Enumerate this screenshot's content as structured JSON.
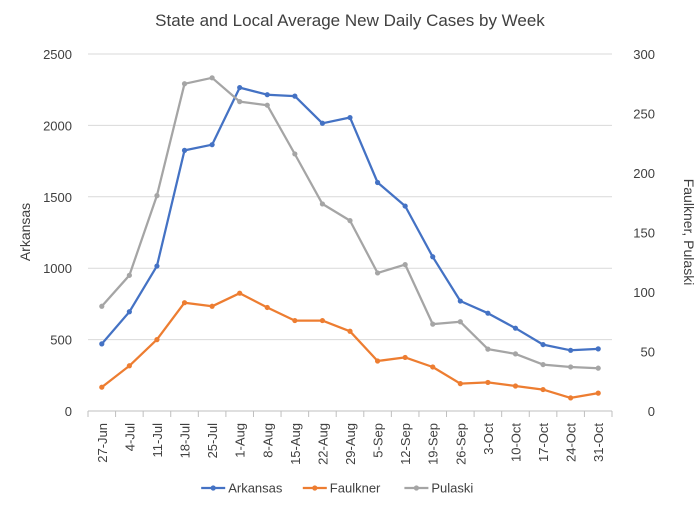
{
  "chart_data": {
    "type": "line",
    "title": "State and Local Average New Daily Cases by Week",
    "categories": [
      "27-Jun",
      "4-Jul",
      "11-Jul",
      "18-Jul",
      "25-Jul",
      "1-Aug",
      "8-Aug",
      "15-Aug",
      "22-Aug",
      "29-Aug",
      "5-Sep",
      "12-Sep",
      "19-Sep",
      "26-Sep",
      "3-Oct",
      "10-Oct",
      "17-Oct",
      "24-Oct",
      "31-Oct"
    ],
    "y_left": {
      "label": "Arkansas",
      "ylim": [
        0,
        2500
      ],
      "ticks": [
        "0",
        "500",
        "1000",
        "1500",
        "2000",
        "2500"
      ]
    },
    "y_right": {
      "label": "Faulkner, Pulaski",
      "ylim": [
        0,
        300
      ],
      "ticks": [
        "0",
        "50",
        "100",
        "150",
        "200",
        "250",
        "300"
      ]
    },
    "grid": true,
    "legend_position": "bottom",
    "series": [
      {
        "name": "Arkansas",
        "axis": "left",
        "color": "#4472C4",
        "values": [
          470,
          695,
          1015,
          1825,
          1865,
          2265,
          2215,
          2205,
          2015,
          2055,
          1600,
          1435,
          1080,
          770,
          685,
          580,
          465,
          425,
          435
        ]
      },
      {
        "name": "Faulkner",
        "axis": "right",
        "color": "#ED7D31",
        "values": [
          20,
          38,
          60,
          91,
          88,
          99,
          87,
          76,
          76,
          67,
          42,
          45,
          37,
          23,
          24,
          21,
          18,
          11,
          15
        ]
      },
      {
        "name": "Pulaski",
        "axis": "right",
        "color": "#A5A5A5",
        "values": [
          88,
          114,
          181,
          275,
          280,
          260,
          257,
          216,
          174,
          160,
          116,
          123,
          73,
          75,
          52,
          48,
          39,
          37,
          36
        ]
      }
    ]
  }
}
